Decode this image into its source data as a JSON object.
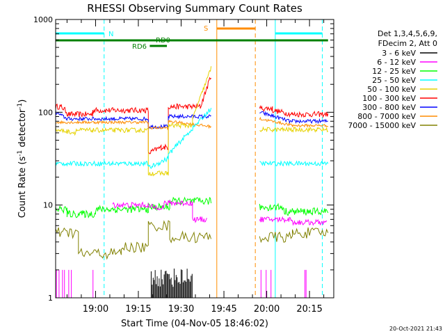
{
  "chart_data": {
    "type": "line",
    "title": "RHESSI Observing Summary Count Rates",
    "xlabel": "Start Time (04-Nov-05 18:46:02)",
    "ylabel_main": "Count Rate (s",
    "ylabel_sup1": "-1",
    "ylabel_mid": " detector",
    "ylabel_sup2": "-1",
    "ylabel_end": ")",
    "ylim": [
      1,
      1000
    ],
    "yscale": "log",
    "xlim_minutes": [
      0,
      97.5
    ],
    "y_ticks": [
      "1",
      "10",
      "100",
      "1000"
    ],
    "x_ticks": [
      {
        "label": "19:00",
        "min": 14
      },
      {
        "label": "19:15",
        "min": 29
      },
      {
        "label": "19:30",
        "min": 44
      },
      {
        "label": "19:45",
        "min": 59
      },
      {
        "label": "20:00",
        "min": 74
      },
      {
        "label": "20:15",
        "min": 89
      }
    ],
    "legend_header": [
      "Det 1,3,4,5,6,9,",
      "FDecim 2, Att 0"
    ],
    "series": [
      {
        "name": "3 - 6 keV",
        "color": "#000000"
      },
      {
        "name": "6 - 12 keV",
        "color": "#ff00ff"
      },
      {
        "name": "12 - 25 keV",
        "color": "#00ff00"
      },
      {
        "name": "25 - 50 keV",
        "color": "#00ffff"
      },
      {
        "name": "50 - 100 keV",
        "color": "#e6d200"
      },
      {
        "name": "100 - 300 keV",
        "color": "#ff0000"
      },
      {
        "name": "300 - 800 keV",
        "color": "#0000ff"
      },
      {
        "name": "800 - 7000 keV",
        "color": "#ff8c00"
      },
      {
        "name": "7000 - 15000 keV",
        "color": "#808000"
      }
    ],
    "annotations": {
      "N": {
        "label": "N",
        "start": 0,
        "end": 17
      },
      "S": {
        "label": "S",
        "start": 56.5,
        "end": 70
      },
      "RD0": {
        "label": "RD0"
      },
      "RD6": {
        "label": "RD6"
      }
    },
    "segments": [
      {
        "start": 0,
        "end": 54.5
      },
      {
        "start": 71.5,
        "end": 95.5
      }
    ]
  },
  "footer": {
    "timestamp": "20-Oct-2021 21:43"
  }
}
